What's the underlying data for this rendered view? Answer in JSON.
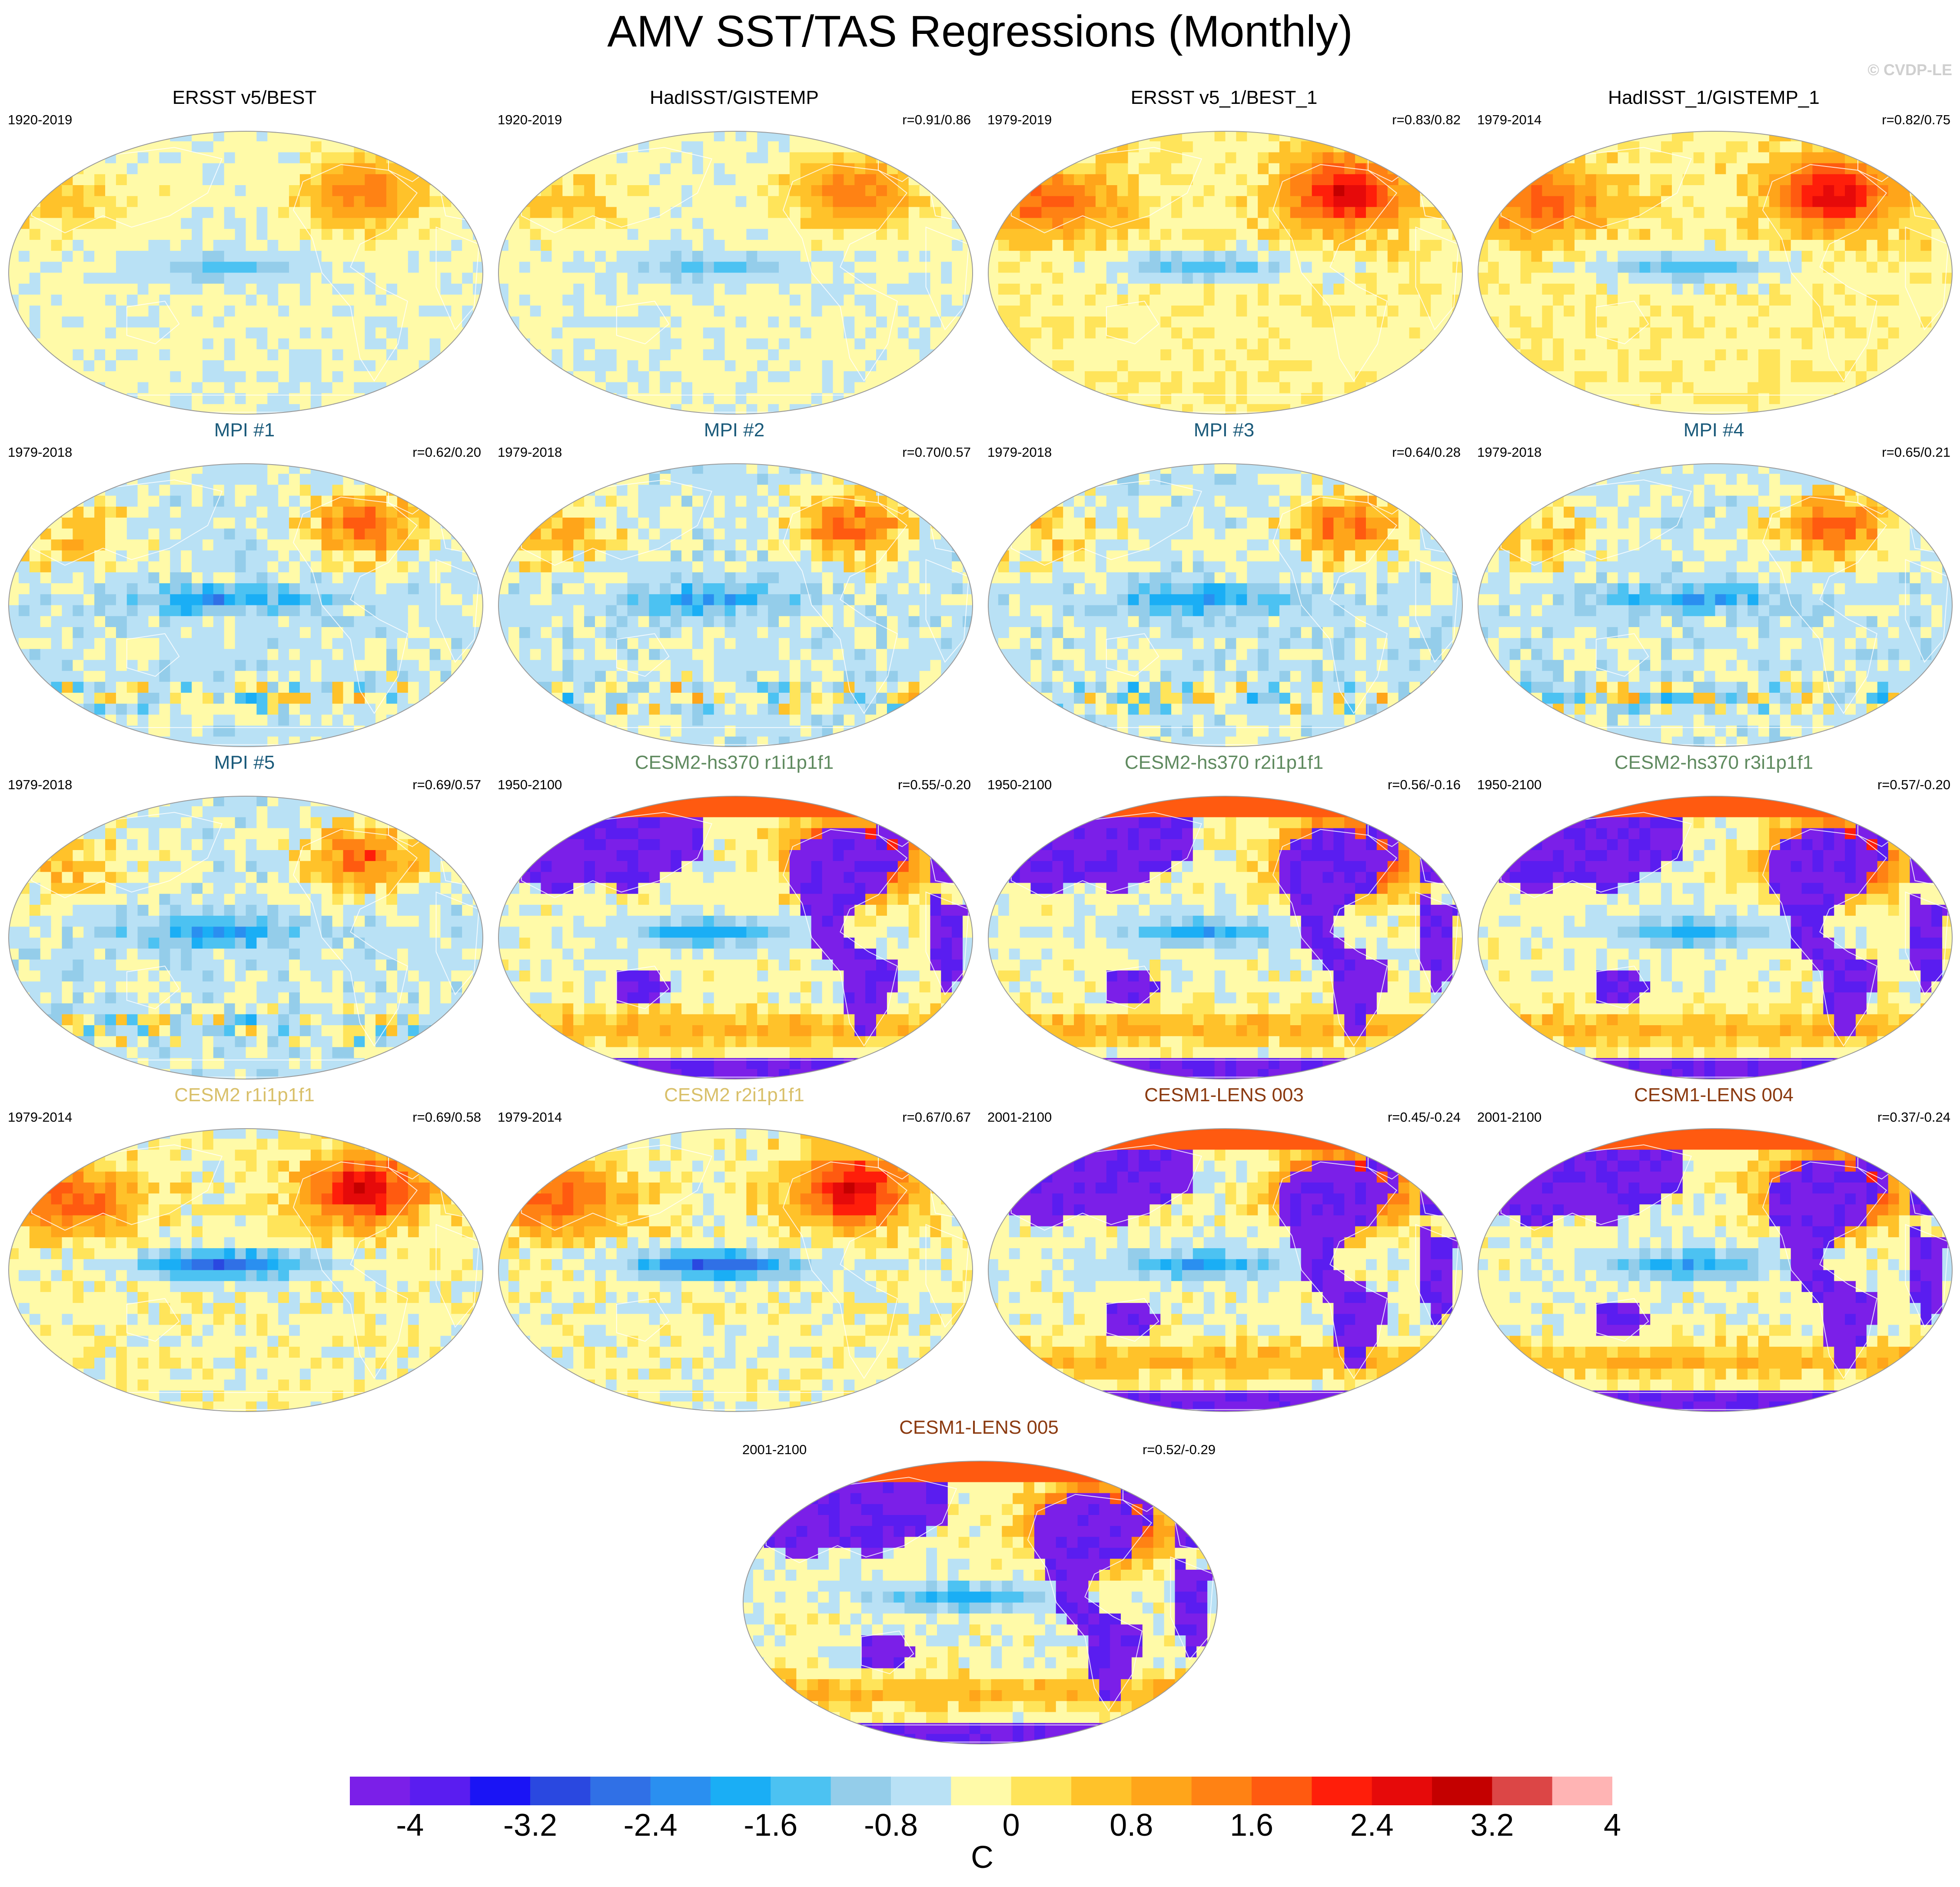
{
  "title": "AMV SST/TAS Regressions (Monthly)",
  "credit": "© CVDP-LE",
  "title_colors": {
    "obs": "#000000",
    "mpi": "#1a5a7a",
    "cesm2_hs370": "#5f8a5f",
    "cesm2": "#d9c06a",
    "cesm1_lens": "#8b3a10"
  },
  "panels": [
    {
      "title": "ERSST v5/BEST",
      "years": "1920-2019",
      "corr": "",
      "style": "obs",
      "seed": 1
    },
    {
      "title": "HadISST/GISTEMP",
      "years": "1920-2019",
      "corr": "r=0.91/0.86",
      "style": "obs",
      "seed": 2
    },
    {
      "title": "ERSST v5_1/BEST_1",
      "years": "1979-2019",
      "corr": "r=0.83/0.82",
      "style": "obs_warm",
      "seed": 3
    },
    {
      "title": "HadISST_1/GISTEMP_1",
      "years": "1979-2014",
      "corr": "r=0.82/0.75",
      "style": "obs_warm",
      "seed": 4
    },
    {
      "title": "MPI #1",
      "years": "1979-2018",
      "corr": "r=0.62/0.20",
      "style": "mpi",
      "seed": 5
    },
    {
      "title": "MPI #2",
      "years": "1979-2018",
      "corr": "r=0.70/0.57",
      "style": "mpi",
      "seed": 6
    },
    {
      "title": "MPI #3",
      "years": "1979-2018",
      "corr": "r=0.64/0.28",
      "style": "mpi",
      "seed": 7
    },
    {
      "title": "MPI #4",
      "years": "1979-2018",
      "corr": "r=0.65/0.21",
      "style": "mpi",
      "seed": 8
    },
    {
      "title": "MPI #5",
      "years": "1979-2018",
      "corr": "r=0.69/0.57",
      "style": "mpi",
      "seed": 9
    },
    {
      "title": "CESM2-hs370 r1i1p1f1",
      "years": "1950-2100",
      "corr": "r=0.55/-0.20",
      "style": "cold_land",
      "seed": 10
    },
    {
      "title": "CESM2-hs370 r2i1p1f1",
      "years": "1950-2100",
      "corr": "r=0.56/-0.16",
      "style": "cold_land",
      "seed": 11
    },
    {
      "title": "CESM2-hs370 r3i1p1f1",
      "years": "1950-2100",
      "corr": "r=0.57/-0.20",
      "style": "cold_land",
      "seed": 12
    },
    {
      "title": "CESM2 r1i1p1f1",
      "years": "1979-2014",
      "corr": "r=0.69/0.58",
      "style": "cesm2",
      "seed": 13
    },
    {
      "title": "CESM2 r2i1p1f1",
      "years": "1979-2014",
      "corr": "r=0.67/0.67",
      "style": "cesm2",
      "seed": 14
    },
    {
      "title": "CESM1-LENS 003",
      "years": "2001-2100",
      "corr": "r=0.45/-0.24",
      "style": "cold_land",
      "seed": 15
    },
    {
      "title": "CESM1-LENS 004",
      "years": "2001-2100",
      "corr": "r=0.37/-0.24",
      "style": "cold_land",
      "seed": 16
    },
    {
      "title": "CESM1-LENS 005",
      "years": "2001-2100",
      "corr": "r=0.52/-0.29",
      "style": "cold_land",
      "seed": 17
    }
  ],
  "colorbar": {
    "unit": "C",
    "labels": [
      "-4",
      "-3.2",
      "-2.4",
      "-1.6",
      "-0.8",
      "0",
      "0.8",
      "1.6",
      "2.4",
      "3.2",
      "4"
    ],
    "colors": [
      "#7b1fe8",
      "#5a1df0",
      "#1a14f5",
      "#2a48e0",
      "#3070e6",
      "#2a8ff0",
      "#1aaef5",
      "#4cc2f2",
      "#94cdea",
      "#b9e1f5",
      "#fffaa8",
      "#ffe45a",
      "#ffc22a",
      "#ffa51a",
      "#ff8214",
      "#ff5a10",
      "#ff1e0a",
      "#e60a0a",
      "#c40000",
      "#dc4646",
      "#ffb4b4"
    ]
  }
}
